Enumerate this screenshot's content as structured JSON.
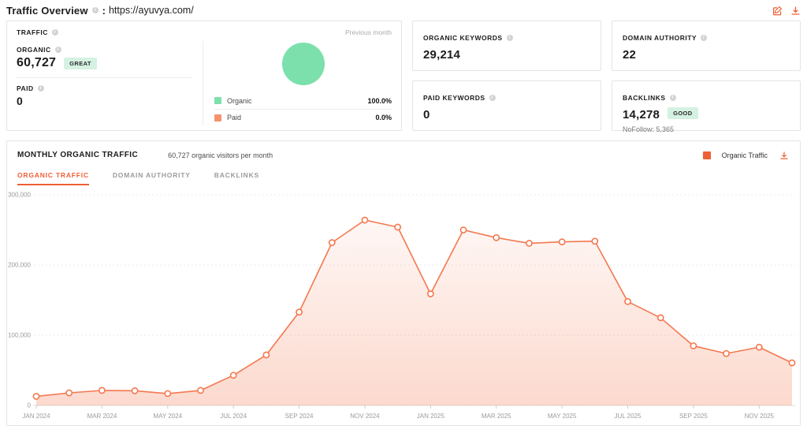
{
  "header": {
    "title": "Traffic Overview",
    "separator": ":",
    "url": "https://ayuvya.com/"
  },
  "icons": {
    "edit": "edit-pencil-square",
    "download": "download-arrow-tray",
    "info": "i"
  },
  "colors": {
    "accent_orange": "#ee5f35",
    "line_orange": "#f4784f",
    "mint_green": "#7ce0ad",
    "paid_salmon": "#f5926d",
    "badge_bg": "#d5f1e2"
  },
  "traffic_card": {
    "title": "TRAFFIC",
    "previous_month_label": "Previous month",
    "organic": {
      "label": "ORGANIC",
      "value": "60,727",
      "badge": "GREAT"
    },
    "paid": {
      "label": "PAID",
      "value": "0"
    },
    "pie": {
      "organic_pct": 100.0,
      "paid_pct": 0.0,
      "color": "#7ce0ad"
    },
    "legend": [
      {
        "label": "Organic",
        "value": "100.0%",
        "color": "#7ce0ad"
      },
      {
        "label": "Paid",
        "value": "0.0%",
        "color": "#f5926d"
      }
    ]
  },
  "organic_keywords": {
    "label": "ORGANIC KEYWORDS",
    "value": "29,214"
  },
  "domain_authority": {
    "label": "DOMAIN AUTHORITY",
    "value": "22"
  },
  "paid_keywords": {
    "label": "PAID KEYWORDS",
    "value": "0"
  },
  "backlinks": {
    "label": "BACKLINKS",
    "value": "14,278",
    "badge": "GOOD",
    "nofollow": "NoFollow: 5,365"
  },
  "monthly": {
    "title": "MONTHLY ORGANIC TRAFFIC",
    "subtitle": "60,727 organic visitors per month",
    "legend_label": "Organic Traffic",
    "tabs": [
      {
        "label": "ORGANIC TRAFFIC",
        "active": true
      },
      {
        "label": "DOMAIN AUTHORITY",
        "active": false
      },
      {
        "label": "BACKLINKS",
        "active": false
      }
    ]
  },
  "chart_data": {
    "type": "area",
    "title": "Monthly Organic Traffic",
    "series_name": "Organic Traffic",
    "x": [
      "JAN 2024",
      "FEB 2024",
      "MAR 2024",
      "APR 2024",
      "MAY 2024",
      "JUN 2024",
      "JUL 2024",
      "AUG 2024",
      "SEP 2024",
      "OCT 2024",
      "NOV 2024",
      "DEC 2024",
      "JAN 2025",
      "FEB 2025",
      "MAR 2025",
      "APR 2025",
      "MAY 2025",
      "JUN 2025",
      "JUL 2025",
      "AUG 2025",
      "SEP 2025",
      "OCT 2025",
      "NOV 2025",
      "DEC 2025"
    ],
    "values": [
      13000,
      18000,
      21500,
      21000,
      17000,
      21500,
      43000,
      72000,
      133000,
      232000,
      264000,
      254000,
      159000,
      250000,
      239000,
      231000,
      233000,
      234000,
      148000,
      125000,
      85000,
      74000,
      83000,
      60727
    ],
    "x_tick_every": 2,
    "y_ticks": [
      0,
      100000,
      200000,
      300000
    ],
    "y_tick_labels": [
      "0",
      "100,000",
      "200,000",
      "300,000"
    ],
    "ylim": [
      0,
      300000
    ],
    "grid": "horizontal-dashed",
    "legend_position": "top-right",
    "line_color": "#f4784f",
    "marker": "open-circle",
    "fill_gradient": {
      "top_opacity": 0.03,
      "bottom_opacity": 0.28
    }
  }
}
